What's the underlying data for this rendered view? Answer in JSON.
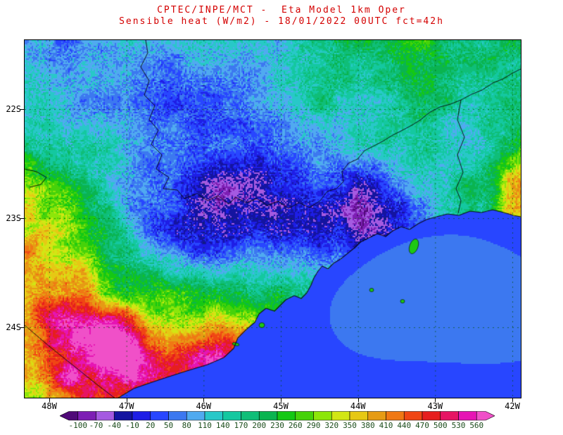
{
  "title": {
    "line1": "CPTEC/INPE/MCT -  Eta Model 1km Oper",
    "line2": "Sensible heat (W/m2) - 18/01/2022 00UTC fct=42h",
    "color": "#d40000"
  },
  "axes": {
    "lat_labels": [
      "22S",
      "23S",
      "24S"
    ],
    "lon_labels": [
      "48W",
      "47W",
      "46W",
      "45W",
      "44W",
      "43W",
      "42W"
    ],
    "label_color": "#000000"
  },
  "colorbar": {
    "unit": "W/m2",
    "tick_labels": [
      "-100",
      "-70",
      "-40",
      "-10",
      "20",
      "50",
      "80",
      "110",
      "140",
      "170",
      "200",
      "230",
      "260",
      "290",
      "320",
      "350",
      "380",
      "410",
      "440",
      "470",
      "500",
      "530",
      "560"
    ],
    "colors": [
      "#500a78",
      "#7d1eb4",
      "#a55ae1",
      "#1414a0",
      "#1e1ee6",
      "#2846ff",
      "#3c78f0",
      "#50aaf0",
      "#28c8c8",
      "#14c8a0",
      "#0fbe78",
      "#0ab450",
      "#14c814",
      "#46d20a",
      "#8ce60a",
      "#d2e614",
      "#e6c814",
      "#e69b14",
      "#f07814",
      "#f04614",
      "#e61e1e",
      "#e61464",
      "#e614b4",
      "#f050c8"
    ],
    "label_color": "#1b4d1b"
  },
  "chart_data": {
    "type": "heatmap",
    "variable": "Sensible heat (W/m2)",
    "center": "CPTEC/INPE/MCT",
    "model": "Eta Model 1km Oper",
    "init_time": "18/01/2022 00UTC",
    "forecast": "fct=42h",
    "lon_ticks": [
      "48W",
      "47W",
      "46W",
      "45W",
      "44W",
      "43W",
      "42W"
    ],
    "lat_ticks": [
      "22S",
      "23S",
      "24S"
    ],
    "scale_levels_wm2": [
      -100,
      -70,
      -40,
      -10,
      20,
      50,
      80,
      110,
      140,
      170,
      200,
      230,
      260,
      290,
      320,
      350,
      380,
      410,
      440,
      470,
      500,
      530,
      560
    ],
    "overlays": [
      "coastline",
      "state-borders",
      "lat-lon-dashed-gridlines"
    ],
    "field_summary": {
      "ocean_wm2": "20-80 uniform blue over Atlantic (lower-right of map)",
      "land_typical_wm2": "80-290 cyan/green speckled mosaic",
      "cool_patches_wm2": "20-110 blue patches over central-north interior and upper-left",
      "warm_patches_wm2": "290-440 yellow/orange along west edge, south-central coastal strip and far-east coast"
    }
  }
}
